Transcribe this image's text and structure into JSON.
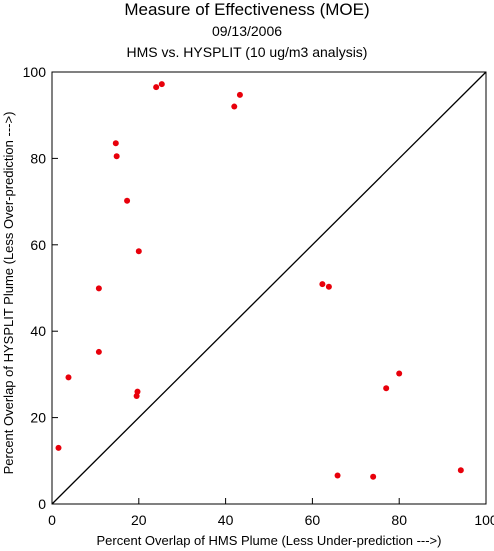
{
  "colors": {
    "background": "#ffffff",
    "axes": "#000000",
    "points": "#e8000b"
  },
  "chart_data": {
    "type": "scatter",
    "title": "Measure of Effectiveness (MOE)",
    "date": "09/13/2006",
    "subtitle": "HMS vs. HYSPLIT  (10 ug/m3 analysis)",
    "xlabel": "Percent Overlap of HMS Plume (Less Under-prediction --->)",
    "ylabel": "Percent Overlap of HYSPLIT Plume (Less Over-prediction --->)",
    "xlim": [
      0,
      100
    ],
    "ylim": [
      0,
      100
    ],
    "xticks": [
      "0",
      "20",
      "40",
      "60",
      "80",
      "100"
    ],
    "yticks": [
      "0",
      "20",
      "40",
      "60",
      "80",
      "100"
    ],
    "grid": false,
    "reference_line": "y = x",
    "points": [
      {
        "x": 1.5,
        "y": 13
      },
      {
        "x": 3.8,
        "y": 29.3
      },
      {
        "x": 10.8,
        "y": 35.2
      },
      {
        "x": 10.8,
        "y": 49.9
      },
      {
        "x": 14.7,
        "y": 83.5
      },
      {
        "x": 14.9,
        "y": 80.5
      },
      {
        "x": 17.3,
        "y": 70.2
      },
      {
        "x": 19.5,
        "y": 25
      },
      {
        "x": 19.7,
        "y": 26
      },
      {
        "x": 20,
        "y": 58.5
      },
      {
        "x": 24,
        "y": 96.5
      },
      {
        "x": 25.3,
        "y": 97.2
      },
      {
        "x": 42,
        "y": 92
      },
      {
        "x": 43.3,
        "y": 94.7
      },
      {
        "x": 62.3,
        "y": 50.9
      },
      {
        "x": 63.8,
        "y": 50.3
      },
      {
        "x": 65.8,
        "y": 6.6
      },
      {
        "x": 74,
        "y": 6.3
      },
      {
        "x": 77,
        "y": 26.8
      },
      {
        "x": 80,
        "y": 30.2
      },
      {
        "x": 94.2,
        "y": 7.8
      }
    ]
  }
}
